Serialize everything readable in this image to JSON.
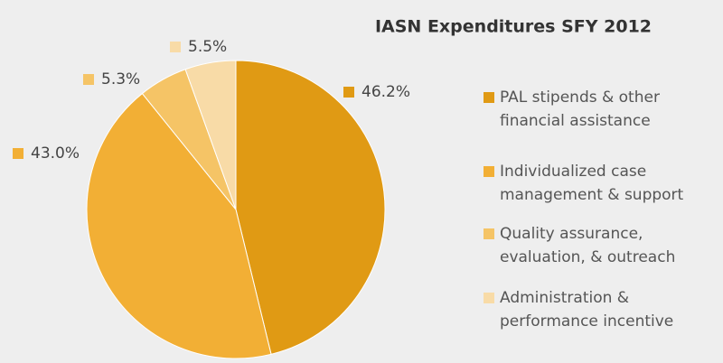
{
  "chart_data": {
    "type": "pie",
    "title": "IASN Expenditures SFY 2012",
    "categories": [
      "PAL stipends & other financial assistance",
      "Individualized case management & support",
      "Quality assurance, evaluation, & outreach",
      "Administration & performance incentive"
    ],
    "values": [
      46.2,
      43.0,
      5.3,
      5.5
    ],
    "value_labels": [
      "46.2%",
      "43.0%",
      "5.3%",
      "5.5%"
    ],
    "colors": [
      "#e09a14",
      "#f2af35",
      "#f5c466",
      "#f8dba7"
    ],
    "legend": "right"
  }
}
